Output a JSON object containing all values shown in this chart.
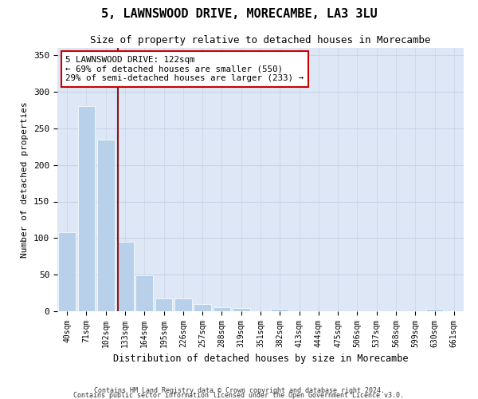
{
  "title": "5, LAWNSWOOD DRIVE, MORECAMBE, LA3 3LU",
  "subtitle": "Size of property relative to detached houses in Morecambe",
  "xlabel": "Distribution of detached houses by size in Morecambe",
  "ylabel": "Number of detached properties",
  "footnote1": "Contains HM Land Registry data © Crown copyright and database right 2024.",
  "footnote2": "Contains public sector information licensed under the Open Government Licence v3.0.",
  "bins": [
    "40sqm",
    "71sqm",
    "102sqm",
    "133sqm",
    "164sqm",
    "195sqm",
    "226sqm",
    "257sqm",
    "288sqm",
    "319sqm",
    "351sqm",
    "382sqm",
    "413sqm",
    "444sqm",
    "475sqm",
    "506sqm",
    "537sqm",
    "568sqm",
    "599sqm",
    "630sqm",
    "661sqm"
  ],
  "values": [
    108,
    280,
    235,
    95,
    49,
    18,
    17,
    10,
    5,
    4,
    0,
    3,
    0,
    0,
    0,
    0,
    0,
    0,
    0,
    3,
    0
  ],
  "bar_color": "#b8d0ea",
  "bar_edge_color": "#ffffff",
  "grid_color": "#c8d4e8",
  "background_color": "#dde7f5",
  "vline_color": "#8b1a1a",
  "annotation_text": "5 LAWNSWOOD DRIVE: 122sqm\n← 69% of detached houses are smaller (550)\n29% of semi-detached houses are larger (233) →",
  "annotation_box_color": "#ffffff",
  "annotation_box_edge": "#cc0000",
  "ylim": [
    0,
    360
  ],
  "yticks": [
    0,
    50,
    100,
    150,
    200,
    250,
    300,
    350
  ]
}
